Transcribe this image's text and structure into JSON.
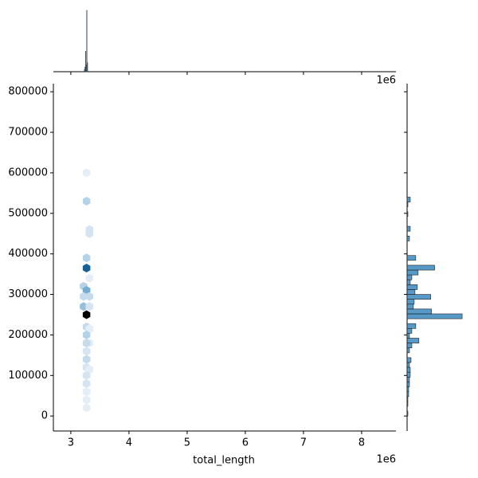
{
  "chart_data": {
    "type": "hexbin",
    "x_label": "total_length",
    "x_offset_text": "1e6",
    "xlim": [
      2.7,
      8.59
    ],
    "xticks": [
      3,
      4,
      5,
      6,
      7,
      8
    ],
    "ylim": [
      -37000,
      820000
    ],
    "yticks": [
      0,
      100000,
      200000,
      300000,
      400000,
      500000,
      600000,
      700000,
      800000
    ],
    "cmap": [
      "#f4f8fc",
      "#1f77b4",
      "#000000"
    ],
    "hexbins": {
      "x": [
        3.27,
        3.27,
        3.32,
        3.32,
        3.27,
        3.27,
        3.32,
        3.22,
        3.27,
        3.22,
        3.32,
        3.22,
        3.27,
        3.32,
        3.27,
        3.32,
        3.27,
        3.32,
        3.27,
        3.27,
        3.27,
        3.27,
        3.32,
        3.27,
        3.27,
        3.27,
        3.27,
        3.27
      ],
      "y": [
        600000,
        530000,
        460000,
        450000,
        390000,
        365000,
        340000,
        320000,
        310000,
        295000,
        295000,
        270000,
        250000,
        270000,
        220000,
        215000,
        200000,
        180000,
        180000,
        160000,
        140000,
        120000,
        115000,
        100000,
        80000,
        60000,
        40000,
        20000
      ],
      "counts": [
        1,
        4,
        2,
        2,
        4,
        16,
        1,
        4,
        8,
        3,
        3,
        6,
        27,
        2,
        3,
        1,
        4,
        1,
        3,
        2,
        3,
        2,
        1,
        2,
        2,
        1,
        1,
        1
      ]
    },
    "top_hist": {
      "color": "#1f77b4",
      "ylim": [
        0,
        28
      ],
      "bins": [
        3.23,
        3.24,
        3.25,
        3.26,
        3.27,
        3.28,
        3.29
      ],
      "counts": [
        1,
        2,
        9,
        3,
        27,
        4
      ]
    },
    "right_hist": {
      "color": "#1f77b4",
      "xlim": [
        0,
        80
      ],
      "bins": [
        0,
        12000,
        24000,
        36000,
        48000,
        60000,
        72000,
        84000,
        96000,
        108000,
        120000,
        132000,
        144000,
        156000,
        168000,
        180000,
        192000,
        204000,
        216000,
        228000,
        240000,
        252000,
        264000,
        276000,
        288000,
        300000,
        312000,
        324000,
        336000,
        348000,
        360000,
        372000,
        384000,
        396000,
        408000,
        420000,
        432000,
        444000,
        456000,
        468000,
        480000,
        492000,
        504000,
        516000,
        528000,
        540000,
        552000
      ],
      "counts": [
        1,
        0,
        1,
        1,
        2,
        2,
        3,
        3,
        4,
        4,
        3,
        5,
        0,
        3,
        6,
        15,
        3,
        6,
        11,
        0,
        70,
        31,
        8,
        9,
        30,
        10,
        13,
        4,
        6,
        14,
        35,
        0,
        11,
        0,
        0,
        0,
        3,
        0,
        4,
        0,
        0,
        1,
        0,
        1,
        4,
        0
      ]
    }
  }
}
